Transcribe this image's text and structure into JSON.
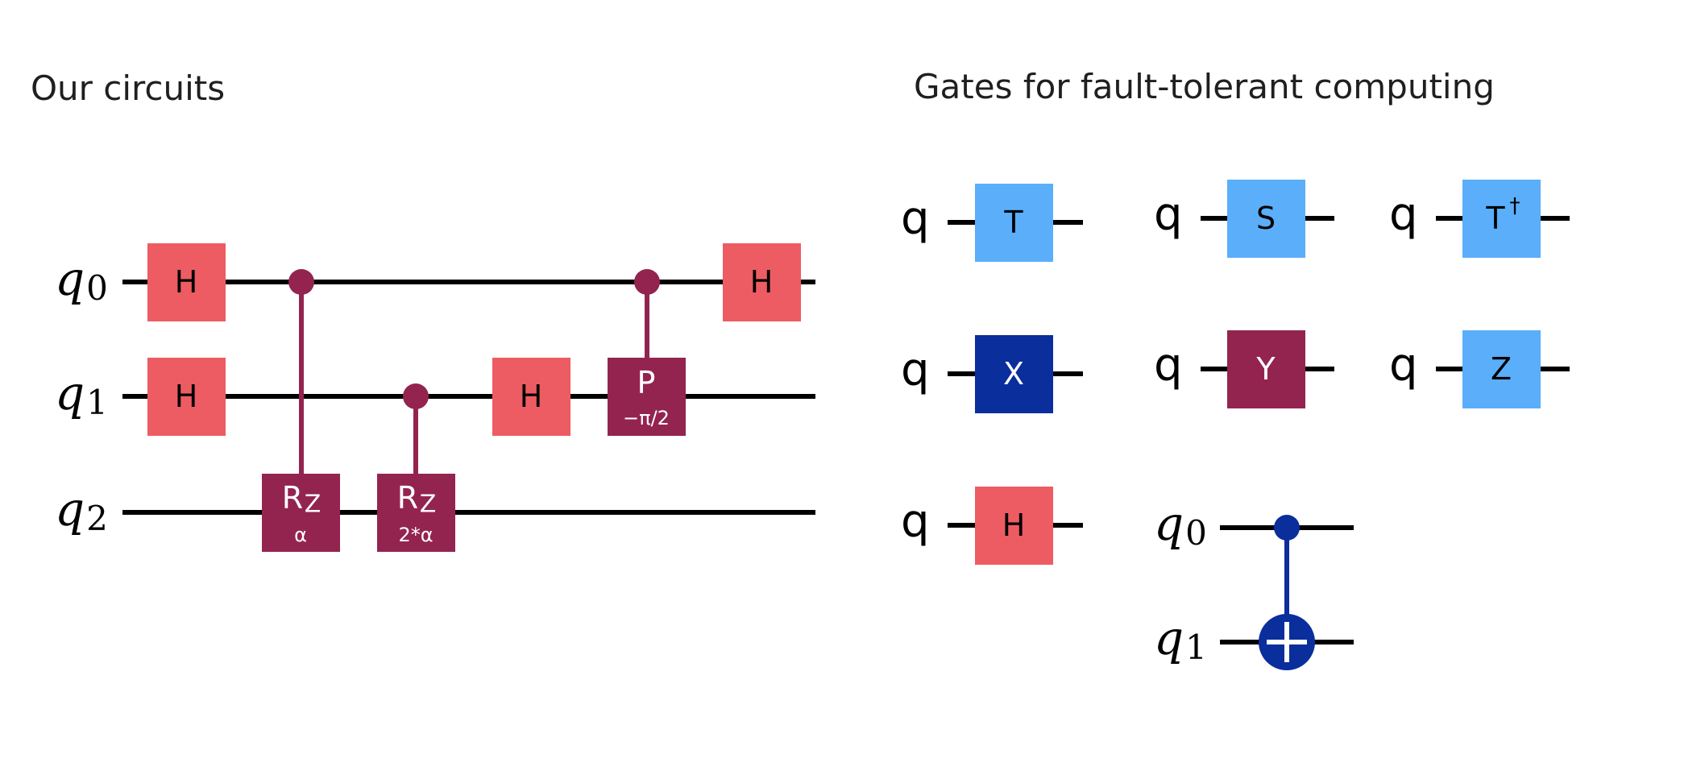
{
  "titles": {
    "left": "Our circuits",
    "right": "Gates for fault-tolerant computing"
  },
  "colors": {
    "hadamard": "#ED5C62",
    "rotation": "#93244F",
    "clifford_light": "#5AAEFA",
    "pauli_x": "#0A2E9C",
    "wire": "#000000",
    "gate_text_dark": "#000000",
    "gate_text_light": "#ffffff"
  },
  "circuit": {
    "wires": [
      {
        "label": "q",
        "sub": "0"
      },
      {
        "label": "q",
        "sub": "1"
      },
      {
        "label": "q",
        "sub": "2"
      }
    ],
    "gates": {
      "h_q0_a": "H",
      "h_q1": "H",
      "rz1_label": "R",
      "rz1_sub": "Z",
      "rz1_param": "α",
      "rz2_label": "R",
      "rz2_sub": "Z",
      "rz2_param": "2*α",
      "h_q1_b": "H",
      "p_label": "P",
      "p_param": "−π/2",
      "h_q0_b": "H"
    }
  },
  "single_gates": [
    {
      "wire": "q",
      "gate": "T"
    },
    {
      "wire": "q",
      "gate": "S"
    },
    {
      "wire": "q",
      "gate": "T",
      "sup": "†"
    },
    {
      "wire": "q",
      "gate": "X"
    },
    {
      "wire": "q",
      "gate": "Y"
    },
    {
      "wire": "q",
      "gate": "Z"
    },
    {
      "wire": "q",
      "gate": "H"
    }
  ],
  "cnot": {
    "wires": [
      {
        "label": "q",
        "sub": "0"
      },
      {
        "label": "q",
        "sub": "1"
      }
    ]
  }
}
